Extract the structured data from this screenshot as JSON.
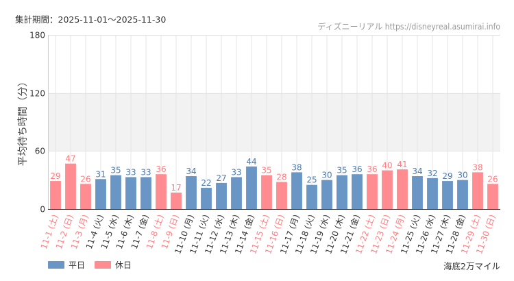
{
  "header": {
    "period": "集計期間：2025-11-01〜2025-11-30",
    "credit": "ディズニーリアル https://disneyreal.asumirai.info"
  },
  "footer": {
    "attraction": "海底2万マイル"
  },
  "colors": {
    "weekday": "#6a96c6",
    "holiday": "#ff8c91",
    "weekday_text": "#4d7aab",
    "holiday_text": "#ff7c80",
    "weekday_label": "#333333",
    "holiday_label": "#ff7c80",
    "band": "#f2f2f2",
    "grid": "#e4e4e4"
  },
  "chart_data": {
    "type": "bar",
    "ylabel": "平均待ち時間（分）",
    "ylim": [
      0,
      180
    ],
    "yticks": [
      0,
      60,
      120,
      180
    ],
    "shaded_band": [
      60,
      120
    ],
    "grid": true,
    "legend_position": "bottom-left",
    "legend": [
      {
        "key": "weekday",
        "label": "平日"
      },
      {
        "key": "holiday",
        "label": "休日"
      }
    ],
    "categories": [
      "11-1 (土)",
      "11-2 (日)",
      "11-3 (月)",
      "11-4 (火)",
      "11-5 (水)",
      "11-6 (木)",
      "11-7 (金)",
      "11-8 (土)",
      "11-9 (日)",
      "11-10 (月)",
      "11-11 (火)",
      "11-12 (水)",
      "11-13 (木)",
      "11-14 (金)",
      "11-15 (土)",
      "11-16 (日)",
      "11-17 (月)",
      "11-18 (火)",
      "11-19 (水)",
      "11-20 (木)",
      "11-21 (金)",
      "11-22 (土)",
      "11-23 (日)",
      "11-24 (月)",
      "11-25 (火)",
      "11-26 (水)",
      "11-27 (木)",
      "11-28 (金)",
      "11-29 (土)",
      "11-30 (日)"
    ],
    "values": [
      29,
      47,
      26,
      31,
      35,
      33,
      33,
      36,
      17,
      34,
      22,
      27,
      33,
      44,
      35,
      28,
      38,
      25,
      30,
      35,
      36,
      36,
      40,
      41,
      34,
      32,
      29,
      30,
      38,
      26
    ],
    "day_type": [
      "holiday",
      "holiday",
      "holiday",
      "weekday",
      "weekday",
      "weekday",
      "weekday",
      "holiday",
      "holiday",
      "weekday",
      "weekday",
      "weekday",
      "weekday",
      "weekday",
      "holiday",
      "holiday",
      "weekday",
      "weekday",
      "weekday",
      "weekday",
      "weekday",
      "holiday",
      "holiday",
      "holiday",
      "weekday",
      "weekday",
      "weekday",
      "weekday",
      "holiday",
      "holiday"
    ]
  }
}
